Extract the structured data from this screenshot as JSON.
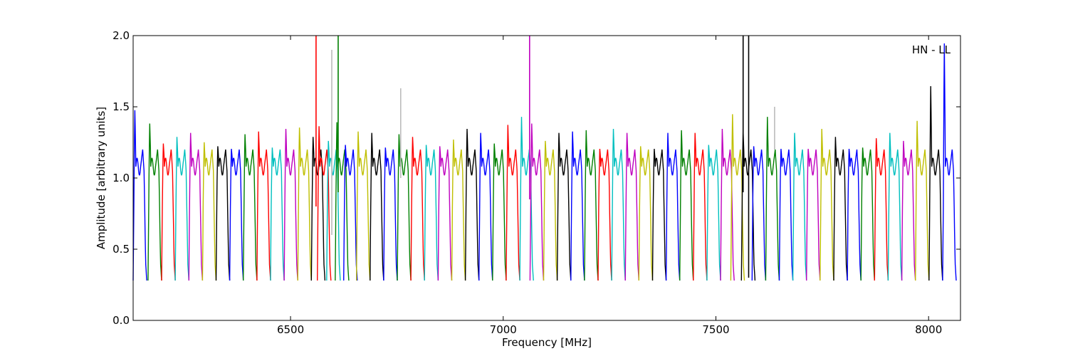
{
  "chart_data": {
    "type": "line",
    "title": "",
    "annotation": "HN - LL",
    "xlabel": "Frequency [MHz]",
    "ylabel": "Amplitude [arbitrary units]",
    "xlim": [
      6130,
      8075
    ],
    "ylim": [
      0.0,
      2.0
    ],
    "x_ticks": [
      6500,
      7000,
      7500,
      8000
    ],
    "x_tick_labels": [
      "6500",
      "7000",
      "7500",
      "8000"
    ],
    "y_ticks": [
      0.0,
      0.5,
      1.0,
      1.5,
      2.0
    ],
    "y_tick_labels": [
      "0.0",
      "0.5",
      "1.0",
      "1.5",
      "2.0"
    ],
    "grid": false,
    "color_cycle": [
      "#0000ff",
      "#008000",
      "#ff0000",
      "#00bfbf",
      "#bf00bf",
      "#bfbf00",
      "#000000"
    ],
    "channel_width_mhz": 32,
    "channels": [
      {
        "start": 6130,
        "color": "#0000ff",
        "peak": 1.5
      },
      {
        "start": 6165,
        "color": "#008000",
        "peak": 1.4
      },
      {
        "start": 6197,
        "color": "#ff0000",
        "peak": 1.25
      },
      {
        "start": 6229,
        "color": "#00bfbf",
        "peak": 1.3
      },
      {
        "start": 6261,
        "color": "#bf00bf",
        "peak": 1.33
      },
      {
        "start": 6293,
        "color": "#bfbf00",
        "peak": 1.26
      },
      {
        "start": 6325,
        "color": "#000000",
        "peak": 1.23
      },
      {
        "start": 6357,
        "color": "#0000ff",
        "peak": 1.21
      },
      {
        "start": 6389,
        "color": "#008000",
        "peak": 1.32
      },
      {
        "start": 6421,
        "color": "#ff0000",
        "peak": 1.34
      },
      {
        "start": 6453,
        "color": "#00bfbf",
        "peak": 1.22
      },
      {
        "start": 6485,
        "color": "#bf00bf",
        "peak": 1.36
      },
      {
        "start": 6517,
        "color": "#bfbf00",
        "peak": 1.37
      },
      {
        "start": 6549,
        "color": "#000000",
        "peak": 1.3
      },
      {
        "start": 6563,
        "color": "#ff0000",
        "peak": 1.38
      },
      {
        "start": 6585,
        "color": "#00bfbf",
        "peak": 1.27
      },
      {
        "start": 6605,
        "color": "#008000",
        "peak": 1.41
      },
      {
        "start": 6625,
        "color": "#0000ff",
        "peak": 1.24
      },
      {
        "start": 6655,
        "color": "#bfbf00",
        "peak": 1.34
      },
      {
        "start": 6687,
        "color": "#000000",
        "peak": 1.33
      },
      {
        "start": 6719,
        "color": "#0000ff",
        "peak": 1.22
      },
      {
        "start": 6751,
        "color": "#008000",
        "peak": 1.32
      },
      {
        "start": 6783,
        "color": "#ff0000",
        "peak": 1.3
      },
      {
        "start": 6815,
        "color": "#00bfbf",
        "peak": 1.24
      },
      {
        "start": 6847,
        "color": "#bf00bf",
        "peak": 1.23
      },
      {
        "start": 6879,
        "color": "#bfbf00",
        "peak": 1.28
      },
      {
        "start": 6911,
        "color": "#000000",
        "peak": 1.36
      },
      {
        "start": 6943,
        "color": "#0000ff",
        "peak": 1.33
      },
      {
        "start": 6975,
        "color": "#008000",
        "peak": 1.25
      },
      {
        "start": 7007,
        "color": "#ff0000",
        "peak": 1.39
      },
      {
        "start": 7039,
        "color": "#00bfbf",
        "peak": 1.45
      },
      {
        "start": 7063,
        "color": "#bf00bf",
        "peak": 1.4
      },
      {
        "start": 7095,
        "color": "#bfbf00",
        "peak": 1.27
      },
      {
        "start": 7127,
        "color": "#000000",
        "peak": 1.33
      },
      {
        "start": 7159,
        "color": "#0000ff",
        "peak": 1.34
      },
      {
        "start": 7191,
        "color": "#008000",
        "peak": 1.35
      },
      {
        "start": 7223,
        "color": "#ff0000",
        "peak": 1.21
      },
      {
        "start": 7255,
        "color": "#00bfbf",
        "peak": 1.36
      },
      {
        "start": 7287,
        "color": "#bf00bf",
        "peak": 1.33
      },
      {
        "start": 7319,
        "color": "#bfbf00",
        "peak": 1.23
      },
      {
        "start": 7351,
        "color": "#000000",
        "peak": 1.21
      },
      {
        "start": 7383,
        "color": "#0000ff",
        "peak": 1.33
      },
      {
        "start": 7415,
        "color": "#008000",
        "peak": 1.35
      },
      {
        "start": 7447,
        "color": "#ff0000",
        "peak": 1.33
      },
      {
        "start": 7479,
        "color": "#00bfbf",
        "peak": 1.24
      },
      {
        "start": 7511,
        "color": "#bf00bf",
        "peak": 1.36
      },
      {
        "start": 7535,
        "color": "#bfbf00",
        "peak": 1.47
      },
      {
        "start": 7560,
        "color": "#000000",
        "peak": 1.34
      },
      {
        "start": 7585,
        "color": "#0000ff",
        "peak": 1.23
      },
      {
        "start": 7617,
        "color": "#008000",
        "peak": 1.45
      },
      {
        "start": 7649,
        "color": "#0000ff",
        "peak": 1.21
      },
      {
        "start": 7681,
        "color": "#00bfbf",
        "peak": 1.33
      },
      {
        "start": 7713,
        "color": "#bf00bf",
        "peak": 1.21
      },
      {
        "start": 7745,
        "color": "#bfbf00",
        "peak": 1.36
      },
      {
        "start": 7777,
        "color": "#000000",
        "peak": 1.3
      },
      {
        "start": 7809,
        "color": "#0000ff",
        "peak": 1.21
      },
      {
        "start": 7841,
        "color": "#008000",
        "peak": 1.22
      },
      {
        "start": 7873,
        "color": "#ff0000",
        "peak": 1.29
      },
      {
        "start": 7905,
        "color": "#00bfbf",
        "peak": 1.33
      },
      {
        "start": 7937,
        "color": "#bf00bf",
        "peak": 1.27
      },
      {
        "start": 7969,
        "color": "#bfbf00",
        "peak": 1.42
      },
      {
        "start": 8001,
        "color": "#000000",
        "peak": 1.68
      },
      {
        "start": 8033,
        "color": "#0000ff",
        "peak": 2.0
      }
    ],
    "spikes": [
      {
        "x": 6560,
        "color": "#ff0000",
        "top": 2.0,
        "bottom": 0.8
      },
      {
        "x": 6597,
        "color": "#bbbbbb",
        "top": 1.9,
        "bottom": 0.6
      },
      {
        "x": 6612,
        "color": "#008000",
        "top": 2.0,
        "bottom": 0.9
      },
      {
        "x": 6759,
        "color": "#bbbbbb",
        "top": 1.63,
        "bottom": 1.0
      },
      {
        "x": 7062,
        "color": "#bf00bf",
        "top": 2.0,
        "bottom": 0.85
      },
      {
        "x": 7564,
        "color": "#000000",
        "top": 2.0,
        "bottom": 0.9
      },
      {
        "x": 7577,
        "color": "#000000",
        "top": 2.0,
        "bottom": 0.3
      },
      {
        "x": 7638,
        "color": "#bbbbbb",
        "top": 1.5,
        "bottom": 1.2
      }
    ]
  }
}
